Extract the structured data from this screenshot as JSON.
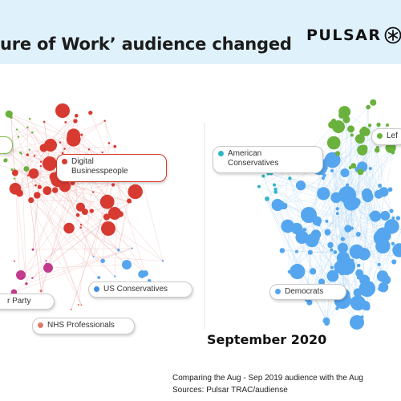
{
  "title": "ure of Work’ audience changed",
  "logo": {
    "text": "PULSAR",
    "icon": "asterisk-circle-icon"
  },
  "left_panel": {
    "labels": [
      {
        "text": "Digital\nBusinesspeople",
        "color": "#d73a31",
        "border": "#d73a31"
      },
      {
        "text": "US Conservatives",
        "color": "#3c8fe6",
        "border": "#c9c9c9"
      },
      {
        "text": "r Party",
        "color": "#c13a8c",
        "border": "#c9c9c9"
      },
      {
        "text": "NHS Professionals",
        "color": "#e07a6a",
        "border": "#c9c9c9"
      }
    ]
  },
  "right_panel": {
    "caption": "September 2020",
    "labels": [
      {
        "text": "American\nConservatives",
        "color": "#2fb6c6",
        "border": "#c9c9c9"
      },
      {
        "text": "Lef",
        "color": "#6ab23d",
        "border": "#c9c9c9"
      },
      {
        "text": "Democrats",
        "color": "#55a6ee",
        "border": "#c9c9c9"
      }
    ]
  },
  "footer": {
    "line1": "Comparing the Aug - Sep 2019 audience with the Aug",
    "line2": "Sources: Pulsar TRAC/audiense"
  },
  "colors": {
    "banner": "#dff1fb",
    "red": "#d73a31",
    "green": "#6ab23d",
    "blue": "#55a6ee",
    "teal": "#2fb6c6",
    "magenta": "#c13a8c"
  }
}
